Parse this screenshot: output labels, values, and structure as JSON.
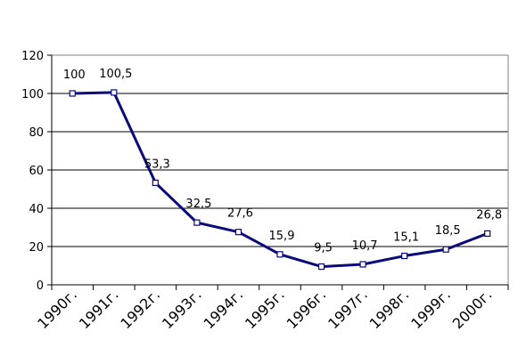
{
  "chart_data": {
    "type": "line",
    "categories": [
      "1990г.",
      "1991г.",
      "1992г.",
      "1993г.",
      "1994г.",
      "1995г.",
      "1996г.",
      "1997г.",
      "1998г.",
      "1999г.",
      "2000г."
    ],
    "values": [
      100,
      100.5,
      53.3,
      32.5,
      27.6,
      15.9,
      9.5,
      10.7,
      15.1,
      18.5,
      26.8
    ],
    "data_labels": [
      "100",
      "100,5",
      "53,3",
      "32,5",
      "27,6",
      "15,9",
      "9,5",
      "10,7",
      "15,1",
      "18,5",
      "26,8"
    ],
    "y_ticks": [
      "0",
      "20",
      "40",
      "60",
      "80",
      "100",
      "120"
    ],
    "ylim": [
      0,
      120
    ],
    "grid": true,
    "legend": "none",
    "title": "",
    "xlabel": "",
    "ylabel": "",
    "colors": {
      "line": "#0a0a7a",
      "grid": "#000000",
      "marker_fill": "#ffffff"
    }
  }
}
